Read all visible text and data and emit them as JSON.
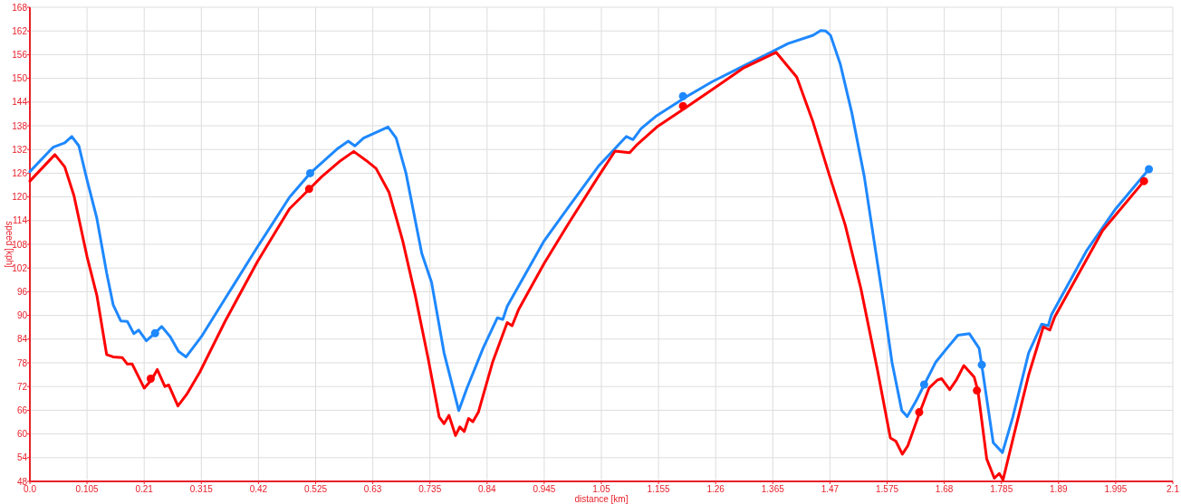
{
  "chart_data": {
    "type": "line",
    "xlabel": "distance [km]",
    "ylabel": "speed [kph]",
    "xlim": [
      0,
      2.1
    ],
    "ylim": [
      48,
      168
    ],
    "xticks": [
      {
        "value": 0,
        "label": "0.0"
      },
      0.105,
      0.21,
      0.315,
      0.42,
      0.525,
      0.63,
      0.735,
      0.84,
      0.945,
      1.05,
      1.155,
      1.26,
      1.365,
      1.47,
      1.575,
      1.68,
      1.785,
      1.89,
      1.995,
      2.1
    ],
    "yticks": [
      48,
      54,
      60,
      66,
      72,
      78,
      84,
      90,
      96,
      102,
      108,
      114,
      120,
      126,
      132,
      138,
      144,
      150,
      156,
      162,
      168
    ],
    "grid": true,
    "marker": "none",
    "line_style": "solid",
    "series": [
      {
        "color": "#1e88ff",
        "x": [
          0,
          0.043,
          0.064,
          0.077,
          0.09,
          0.105,
          0.123,
          0.141,
          0.153,
          0.167,
          0.179,
          0.191,
          0.2,
          0.214,
          0.229,
          0.242,
          0.258,
          0.273,
          0.287,
          0.315,
          0.359,
          0.418,
          0.477,
          0.515,
          0.566,
          0.585,
          0.597,
          0.613,
          0.658,
          0.673,
          0.691,
          0.72,
          0.738,
          0.761,
          0.788,
          0.803,
          0.833,
          0.859,
          0.869,
          0.877,
          0.945,
          0.992,
          1.046,
          1.096,
          1.108,
          1.123,
          1.152,
          1.208,
          1.253,
          1.312,
          1.353,
          1.393,
          1.439,
          1.453,
          1.462,
          1.471,
          1.489,
          1.51,
          1.533,
          1.551,
          1.569,
          1.584,
          1.602,
          1.612,
          1.628,
          1.643,
          1.664,
          1.685,
          1.705,
          1.726,
          1.744,
          1.749,
          1.77,
          1.787,
          1.806,
          1.835,
          1.859,
          1.871,
          1.877,
          1.942,
          1.995,
          2.056
        ],
        "values": [
          126.4,
          132.6,
          133.7,
          135.3,
          132.9,
          124.3,
          114.6,
          100.8,
          92.7,
          88.6,
          88.5,
          85.4,
          86.3,
          83.6,
          85.4,
          87.2,
          84.6,
          80.9,
          79.5,
          84.6,
          94.3,
          107.3,
          119.9,
          126,
          132.3,
          134.1,
          132.9,
          134.9,
          137.7,
          134.9,
          126,
          105.7,
          98.4,
          80.5,
          65.9,
          71.6,
          81.8,
          89.4,
          89,
          92.3,
          108.9,
          117.9,
          128,
          135.3,
          134.5,
          137.3,
          140.6,
          145.5,
          149.1,
          153.2,
          156,
          158.8,
          160.9,
          162.1,
          162,
          160.9,
          153.6,
          141.4,
          125.2,
          108.9,
          92.7,
          78.1,
          65.9,
          64.4,
          68.3,
          72.4,
          78.1,
          81.7,
          85,
          85.4,
          81.7,
          77.3,
          57.8,
          55.3,
          64.3,
          80.5,
          87.8,
          87.4,
          90.2,
          106.5,
          117,
          127
        ]
      },
      {
        "color": "#ff0000",
        "x": [
          0,
          0.046,
          0.064,
          0.081,
          0.105,
          0.123,
          0.141,
          0.153,
          0.17,
          0.179,
          0.188,
          0.21,
          0.223,
          0.234,
          0.248,
          0.255,
          0.272,
          0.288,
          0.312,
          0.359,
          0.418,
          0.477,
          0.513,
          0.536,
          0.571,
          0.595,
          0.618,
          0.636,
          0.66,
          0.685,
          0.708,
          0.732,
          0.752,
          0.761,
          0.77,
          0.782,
          0.79,
          0.798,
          0.806,
          0.814,
          0.824,
          0.85,
          0.877,
          0.886,
          0.898,
          0.945,
          0.992,
          1.046,
          1.075,
          1.102,
          1.116,
          1.152,
          1.205,
          1.253,
          1.312,
          1.371,
          1.409,
          1.439,
          1.468,
          1.498,
          1.527,
          1.557,
          1.581,
          1.591,
          1.603,
          1.613,
          1.634,
          1.652,
          1.667,
          1.675,
          1.69,
          1.702,
          1.716,
          1.735,
          1.742,
          1.758,
          1.772,
          1.781,
          1.788,
          1.806,
          1.835,
          1.862,
          1.874,
          1.883,
          1.971,
          2.047
        ],
        "values": [
          124,
          130.7,
          127.6,
          120.3,
          104.9,
          95.1,
          80.1,
          79.5,
          79.3,
          77.7,
          77.7,
          71.6,
          73.6,
          76.3,
          72,
          72.4,
          67.1,
          70,
          75.6,
          88.6,
          103.6,
          117,
          121.9,
          125.1,
          129.2,
          131.5,
          129.2,
          127.2,
          121.1,
          108.9,
          95.1,
          78.9,
          64.3,
          62.6,
          64.7,
          59.6,
          61.8,
          60.6,
          63.9,
          63.1,
          65.5,
          78.1,
          88.2,
          87.4,
          91.5,
          103.2,
          113.8,
          125.5,
          131.6,
          131.2,
          133.3,
          137.7,
          142.6,
          147.1,
          152.7,
          156.6,
          150.3,
          138.9,
          125.9,
          112.9,
          96.7,
          76.4,
          59,
          58.2,
          54.9,
          57,
          65.1,
          71.6,
          73.6,
          74,
          71.2,
          73.6,
          77.3,
          74.4,
          70.8,
          53.7,
          48.8,
          50,
          48.4,
          58.6,
          74.9,
          87.1,
          86.3,
          89.6,
          111.5,
          124
        ]
      },
      {
        "type": "scatter",
        "marker": "circle",
        "color": "#1e88ff",
        "x": [
          0.23,
          0.515,
          1.2,
          1.643,
          1.749,
          2.056
        ],
        "values": [
          85.5,
          126,
          145.5,
          72.5,
          77.5,
          127
        ]
      },
      {
        "type": "scatter",
        "marker": "circle",
        "color": "#ff0000",
        "x": [
          0.222,
          0.513,
          1.2,
          1.634,
          1.74,
          2.047
        ],
        "values": [
          74,
          122,
          143,
          65.5,
          71,
          124
        ]
      }
    ]
  }
}
